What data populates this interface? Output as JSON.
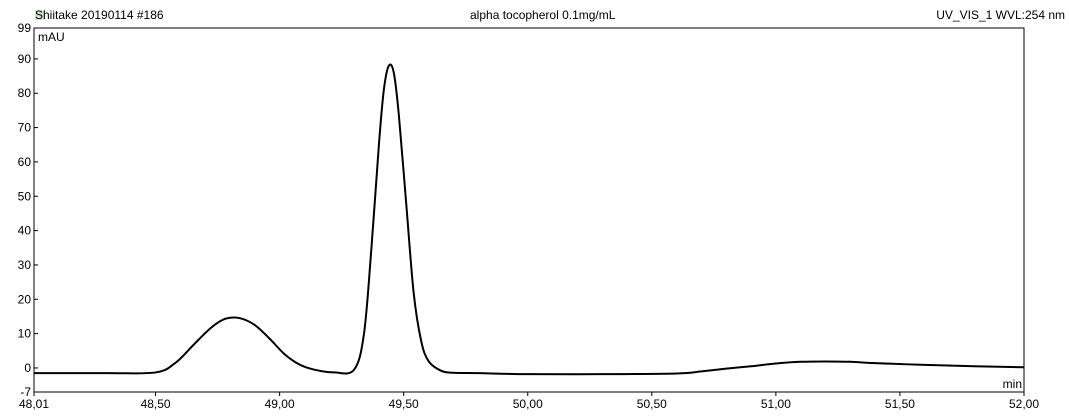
{
  "header": {
    "sample": "Shiitake 20190114 #186",
    "method": "alpha tocopherol 0.1mg/mL",
    "detector": "UV_VIS_1 WVL:254 nm",
    "legend_color": "#cfe8cf"
  },
  "chart_data": {
    "type": "line",
    "title": "alpha tocopherol 0.1mg/mL",
    "ylabel": "mAU",
    "xlabel": "min",
    "xlim": [
      48.01,
      52.0
    ],
    "ylim": [
      -7,
      99
    ],
    "x_ticks": [
      48.01,
      48.5,
      49.0,
      49.5,
      50.0,
      50.5,
      51.0,
      51.5,
      52.0
    ],
    "x_tick_labels": [
      "48,01",
      "48,50",
      "49,00",
      "49,50",
      "50,00",
      "50,50",
      "51,00",
      "51,50",
      "52,00"
    ],
    "y_ticks": [
      -7,
      0,
      10,
      20,
      30,
      40,
      50,
      60,
      70,
      80,
      90,
      99
    ],
    "y_tick_labels": [
      "-7",
      "0",
      "10",
      "20",
      "30",
      "40",
      "50",
      "60",
      "70",
      "80",
      "90",
      "99"
    ],
    "grid": false,
    "line_color": "#000000",
    "series": [
      {
        "x": [
          48.01,
          48.3,
          48.5,
          48.58,
          48.65,
          48.72,
          48.78,
          48.84,
          48.9,
          48.96,
          49.02,
          49.08,
          49.14,
          49.22,
          49.3,
          49.34,
          49.37,
          49.4,
          49.42,
          49.44,
          49.46,
          49.48,
          49.51,
          49.54,
          49.57,
          49.6,
          49.65,
          49.7,
          49.8,
          50.0,
          50.3,
          50.6,
          50.7,
          50.8,
          50.9,
          51.0,
          51.1,
          51.2,
          51.3,
          51.4,
          51.6,
          51.8,
          52.0
        ],
        "y": [
          -1.5,
          -1.5,
          -1.3,
          1.5,
          6.5,
          11.5,
          14.3,
          14.5,
          12.5,
          8.5,
          4.0,
          1.0,
          -0.5,
          -1.3,
          -0.5,
          10,
          35,
          65,
          81,
          88,
          86,
          74,
          48,
          22,
          8,
          2,
          -0.8,
          -1.4,
          -1.5,
          -1.8,
          -1.8,
          -1.6,
          -1.0,
          -0.2,
          0.5,
          1.3,
          1.8,
          1.9,
          1.8,
          1.4,
          0.9,
          0.5,
          0.2
        ]
      }
    ]
  }
}
